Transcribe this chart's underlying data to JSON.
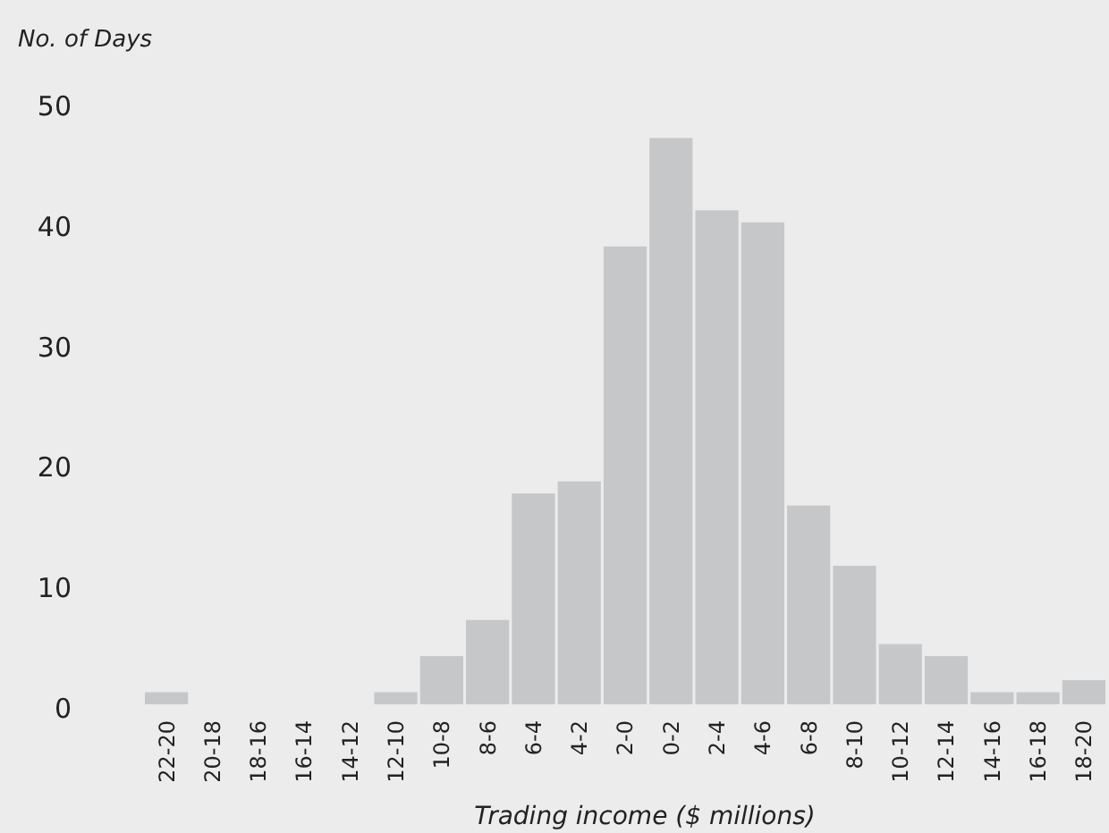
{
  "chart_data": {
    "type": "bar",
    "ylabel": "No. of Days",
    "xlabel": "Trading income ($ millions)",
    "categories": [
      "22-20",
      "20-18",
      "18-16",
      "16-14",
      "14-12",
      "12-10",
      "10-8",
      "8-6",
      "6-4",
      "4-2",
      "2-0",
      "0-2",
      "2-4",
      "4-6",
      "6-8",
      "8-10",
      "10-12",
      "12-14",
      "14-16",
      "16-18",
      "18-20"
    ],
    "values": [
      1,
      0,
      0,
      0,
      0,
      1,
      4,
      7,
      17.5,
      18.5,
      38,
      47,
      41,
      40,
      16.5,
      11.5,
      5,
      4,
      1,
      1,
      2
    ],
    "color": "#c6c7c9",
    "ylim": [
      0,
      50
    ],
    "yticks": [
      0,
      10,
      20,
      30,
      40,
      50
    ],
    "grid": false
  }
}
